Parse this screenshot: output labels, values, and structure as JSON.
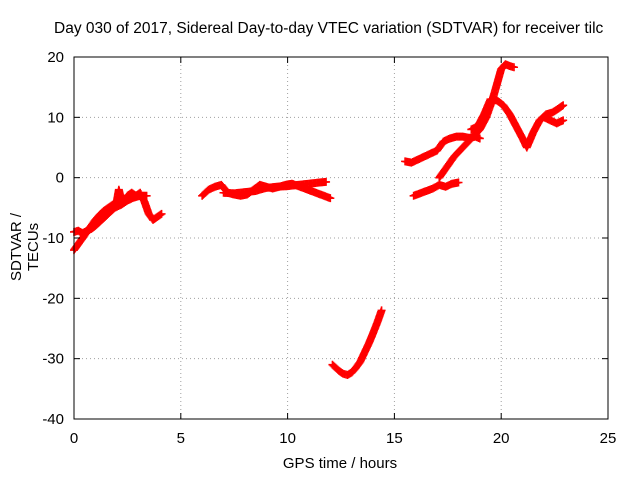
{
  "chart_data": {
    "type": "scatter",
    "title": "Day 030 of 2017, Sidereal Day-to-day VTEC variation (SDTVAR) for receiver tilc",
    "xlabel": "GPS time / hours",
    "ylabel": "SDTVAR / TECUs",
    "xlim": [
      0,
      25
    ],
    "ylim": [
      -40,
      20
    ],
    "xticks": [
      0,
      5,
      10,
      15,
      20,
      25
    ],
    "yticks": [
      -40,
      -30,
      -20,
      -10,
      0,
      10,
      20
    ],
    "grid": true,
    "marker": "plus",
    "color": "#ff0000",
    "series": [
      {
        "x": [
          0.0,
          0.1,
          0.2,
          0.3,
          0.45,
          0.6,
          0.8,
          1.0,
          1.2,
          1.4,
          1.6,
          1.8,
          2.0,
          2.1,
          2.2,
          2.35,
          2.5,
          2.7,
          2.9,
          3.1,
          3.3,
          3.5,
          3.7,
          3.9,
          4.1
        ],
        "y": [
          -12.0,
          -11.5,
          -11.0,
          -10.5,
          -9.8,
          -9.0,
          -8.0,
          -7.0,
          -6.2,
          -5.5,
          -5.0,
          -4.5,
          -4.0,
          -2.0,
          -3.5,
          -4.0,
          -3.0,
          -2.5,
          -3.0,
          -2.5,
          -4.0,
          -6.0,
          -7.0,
          -6.5,
          -6.0
        ]
      },
      {
        "x": [
          0.0,
          0.2,
          0.4,
          0.6,
          0.8,
          1.0,
          1.3,
          1.6,
          1.9,
          2.2,
          2.5,
          2.8,
          3.1,
          3.4
        ],
        "y": [
          -9.0,
          -8.8,
          -9.2,
          -8.8,
          -8.5,
          -8.0,
          -7.0,
          -6.0,
          -5.0,
          -4.5,
          -3.8,
          -3.3,
          -3.0,
          -3.0
        ]
      },
      {
        "x": [
          6.0,
          6.3,
          6.6,
          6.9,
          7.2,
          7.5,
          7.8,
          8.1,
          8.4,
          8.7,
          9.0,
          9.3,
          9.6,
          9.9,
          10.2,
          10.5,
          10.8,
          11.1,
          11.4,
          11.7,
          12.0
        ],
        "y": [
          -3.0,
          -2.0,
          -1.5,
          -1.2,
          -2.5,
          -2.8,
          -3.0,
          -2.8,
          -2.0,
          -1.2,
          -1.5,
          -1.8,
          -1.5,
          -1.2,
          -1.0,
          -1.4,
          -1.8,
          -2.2,
          -2.6,
          -3.0,
          -3.4
        ]
      },
      {
        "x": [
          7.0,
          7.5,
          8.0,
          8.5,
          9.0,
          9.5,
          10.0,
          10.5,
          11.0,
          11.5,
          11.8
        ],
        "y": [
          -2.5,
          -2.6,
          -2.4,
          -2.2,
          -1.7,
          -1.5,
          -1.4,
          -1.2,
          -1.0,
          -0.8,
          -0.7
        ]
      },
      {
        "x": [
          12.1,
          12.4,
          12.6,
          12.8,
          13.0,
          13.2,
          13.4,
          13.6,
          13.8,
          14.0,
          14.2,
          14.4
        ],
        "y": [
          -31.0,
          -32.0,
          -32.5,
          -32.7,
          -32.3,
          -31.5,
          -30.5,
          -29.0,
          -27.5,
          -25.8,
          -24.0,
          -22.0
        ]
      },
      {
        "x": [
          15.5,
          15.8,
          16.1,
          16.4,
          16.7,
          17.0,
          17.3,
          17.6,
          17.9,
          18.2,
          18.5,
          18.8,
          19.0
        ],
        "y": [
          2.7,
          2.5,
          3.0,
          3.5,
          4.0,
          4.5,
          6.0,
          6.5,
          6.8,
          6.8,
          6.6,
          6.8,
          6.5
        ]
      },
      {
        "x": [
          15.9,
          16.2,
          16.5,
          16.8,
          17.1,
          17.4,
          17.7,
          18.0
        ],
        "y": [
          -3.0,
          -2.6,
          -2.2,
          -1.8,
          -1.2,
          -1.5,
          -1.0,
          -0.8
        ]
      },
      {
        "x": [
          17.1,
          17.4,
          17.8,
          18.2,
          18.6,
          19.0,
          19.3,
          19.6,
          19.8,
          20.0,
          20.2,
          20.4,
          20.6
        ],
        "y": [
          0.0,
          1.5,
          3.5,
          5.0,
          6.5,
          8.0,
          10.0,
          13.0,
          15.5,
          18.0,
          18.8,
          18.5,
          18.3
        ]
      },
      {
        "x": [
          18.6,
          18.9,
          19.2,
          19.5,
          19.8,
          20.1,
          20.4,
          20.7,
          21.0,
          21.2,
          21.5,
          21.8,
          22.1,
          22.4,
          22.7,
          22.9
        ],
        "y": [
          8.0,
          8.5,
          10.5,
          13.0,
          12.8,
          12.0,
          10.5,
          8.5,
          6.5,
          5.0,
          7.5,
          9.5,
          10.5,
          10.8,
          11.5,
          12.0
        ]
      },
      {
        "x": [
          22.0,
          22.3,
          22.6,
          22.9
        ],
        "y": [
          10.0,
          9.5,
          9.0,
          9.5
        ]
      }
    ]
  }
}
